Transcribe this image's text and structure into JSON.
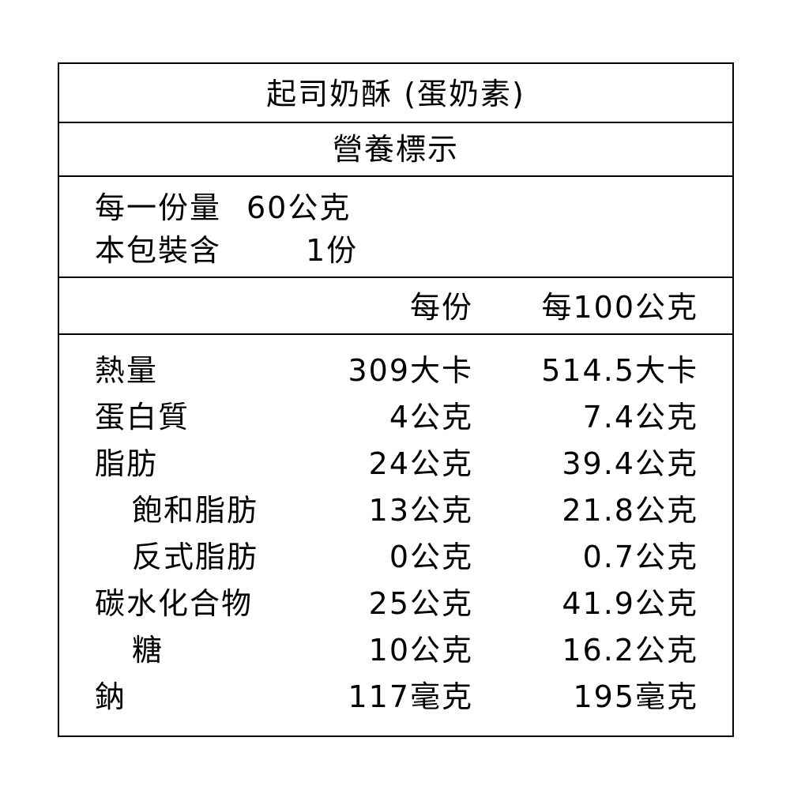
{
  "title": "起司奶酥 (蛋奶素)",
  "subtitle": "營養標示",
  "serving": {
    "size_label": "每一份量",
    "size_value": "60公克",
    "count_label": "本包裝含",
    "count_value": "1份"
  },
  "columns": {
    "per_serving": "每份",
    "per_100g": "每100公克"
  },
  "rows": [
    {
      "label": "熱量",
      "per_serving": "309大卡",
      "per_100g": "514.5大卡"
    },
    {
      "label": "蛋白質",
      "per_serving": "4公克",
      "per_100g": "7.4公克"
    },
    {
      "label": "脂肪",
      "per_serving": "24公克",
      "per_100g": "39.4公克"
    },
    {
      "label": "飽和脂肪",
      "per_serving": "13公克",
      "per_100g": "21.8公克"
    },
    {
      "label": "反式脂肪",
      "per_serving": "0公克",
      "per_100g": "0.7公克"
    },
    {
      "label": "碳水化合物",
      "per_serving": "25公克",
      "per_100g": "41.9公克"
    },
    {
      "label": "糖",
      "per_serving": "10公克",
      "per_100g": "16.2公克"
    },
    {
      "label": "鈉",
      "per_serving": "117毫克",
      "per_100g": "195毫克"
    }
  ]
}
